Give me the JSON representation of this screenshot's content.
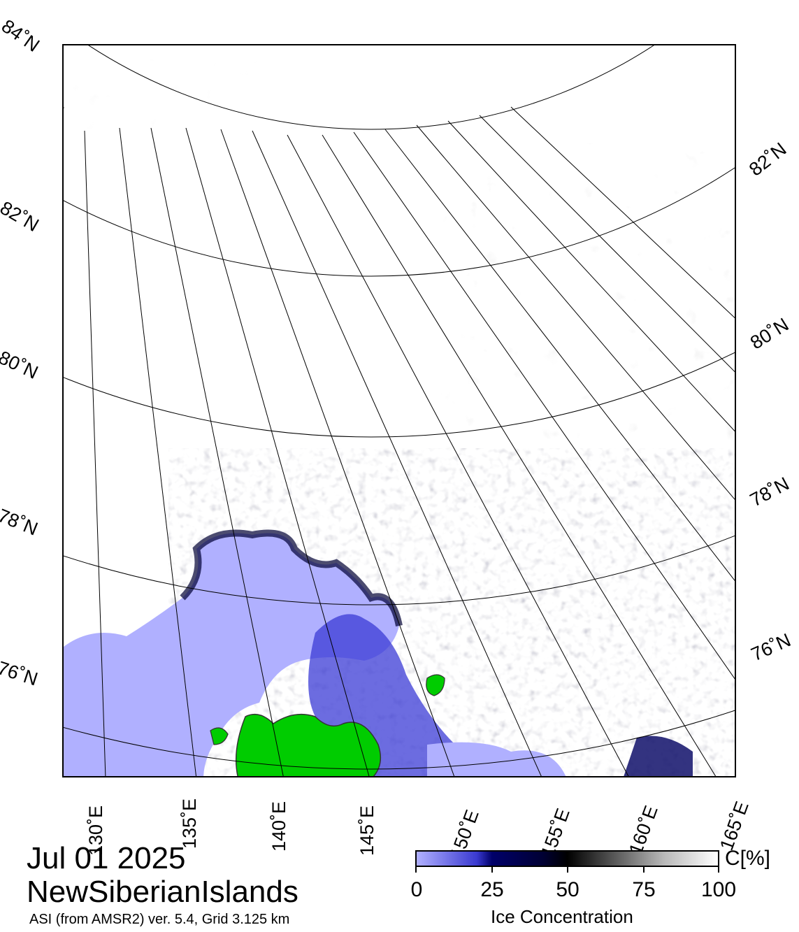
{
  "map": {
    "date": "Jul 01 2025",
    "region": "NewSiberianIslands",
    "product": "ASI (from AMSR2) ver. 5.4,  Grid 3.125 km",
    "colors": {
      "open_water_low": "#b0b0ff",
      "ice_mid": "#00006a",
      "ice_high": "#ffffff",
      "land": "#00cc00",
      "graticule": "#000000"
    }
  },
  "latitude_labels_left": [
    "84˚N",
    "82˚N",
    "80˚N",
    "78˚N",
    "76˚N"
  ],
  "latitude_labels_right": [
    "82˚N",
    "80˚N",
    "78˚N",
    "76˚N"
  ],
  "longitude_labels": [
    "130˚E",
    "135˚E",
    "140˚E",
    "145˚E",
    "150˚E",
    "155˚E",
    "160˚E",
    "165˚E"
  ],
  "colorbar": {
    "title": "Ice Concentration",
    "unit": "C[%]",
    "ticks": [
      "0",
      "25",
      "50",
      "75",
      "100"
    ]
  }
}
